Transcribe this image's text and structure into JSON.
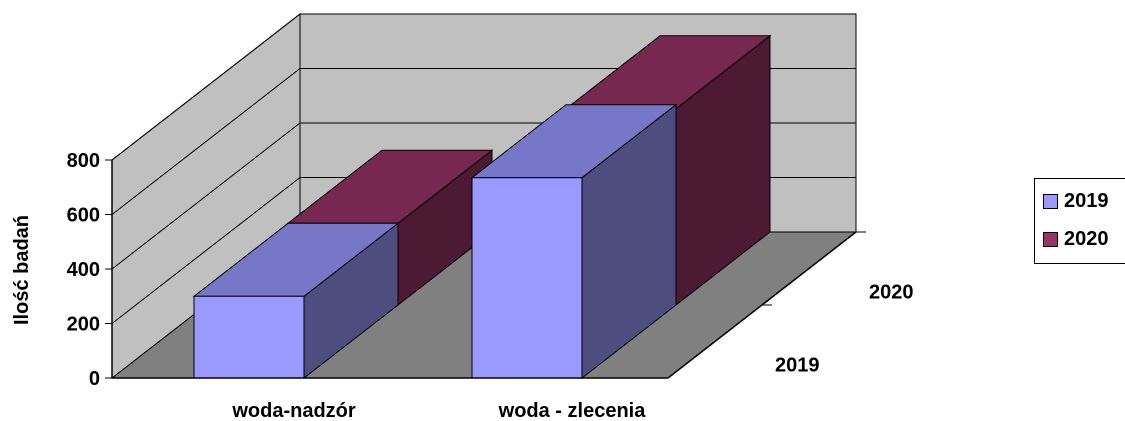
{
  "chart_data": {
    "type": "bar",
    "subtype": "3d-clustered-column",
    "title": "",
    "ylabel": "Ilość badań",
    "xlabel": "",
    "ylim": [
      0,
      800
    ],
    "y_ticks": [
      "0",
      "200",
      "400",
      "600",
      "800"
    ],
    "categories": [
      "woda-nadzór",
      "woda - zlecenia"
    ],
    "depth_labels": [
      "2019",
      "2020"
    ],
    "series": [
      {
        "name": "2019",
        "values": [
          300,
          735
        ],
        "color": "#9999FF"
      },
      {
        "name": "2020",
        "values": [
          300,
          720
        ],
        "color": "#993366"
      }
    ],
    "legend_position": "right",
    "grid": true,
    "walls": {
      "side": "#C0C0C0",
      "back": "#C0C0C0",
      "floor": "#808080"
    }
  },
  "legend": [
    {
      "label": "2019",
      "color": "#9999FF"
    },
    {
      "label": "2020",
      "color": "#993366"
    }
  ]
}
